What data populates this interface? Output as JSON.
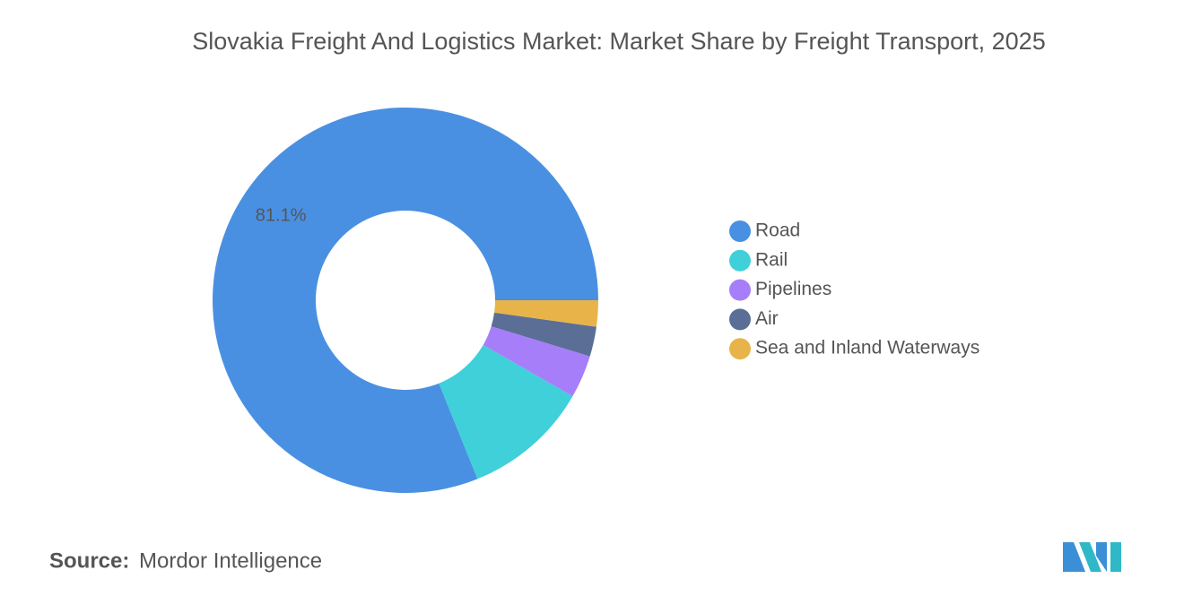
{
  "chart_data": {
    "type": "donut",
    "title": "Slovakia Freight And Logistics Market: Market Share by Freight Transport, 2025",
    "categories": [
      "Road",
      "Rail",
      "Pipelines",
      "Air",
      "Sea and Inland Waterways"
    ],
    "values": [
      81.1,
      10.6,
      3.6,
      2.5,
      2.2
    ],
    "value_labels": [
      "81.1%",
      null,
      null,
      null,
      null
    ],
    "colors": [
      "#4a90e2",
      "#3fd0da",
      "#a77ef9",
      "#5b6e96",
      "#e8b44a"
    ],
    "legend": "right"
  },
  "source": {
    "label": "Source:",
    "text": "Mordor Intelligence"
  }
}
